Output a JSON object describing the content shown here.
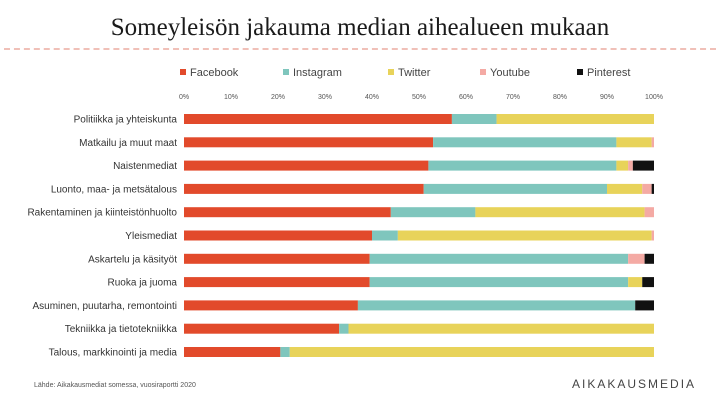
{
  "chart_data": {
    "type": "bar",
    "orientation": "horizontal",
    "stacked": true,
    "title": "Someyleisön jakauma median aihealueen mukaan",
    "categories": [
      "Politiikka ja yhteiskunta",
      "Matkailu ja muut maat",
      "Naistenmediat",
      "Luonto, maa- ja metsätalous",
      "Rakentaminen ja kiinteistönhuolto",
      "Yleismediat",
      "Askartelu ja käsityöt",
      "Ruoka ja juoma",
      "Asuminen, puutarha, remontointi",
      "Tekniikka ja tietotekniikka",
      "Talous, markkinointi ja media"
    ],
    "series": [
      {
        "name": "Facebook",
        "color": "#e24a2b",
        "values": [
          57,
          53,
          52,
          51,
          44,
          40,
          39.5,
          39.5,
          37,
          33,
          20.5
        ]
      },
      {
        "name": "Instagram",
        "color": "#7fc6bd",
        "values": [
          9.5,
          39,
          40,
          39,
          18,
          5.5,
          55,
          55,
          59,
          2,
          2
        ]
      },
      {
        "name": "Twitter",
        "color": "#e8d35a",
        "values": [
          33.5,
          7.5,
          2.5,
          7.5,
          36,
          54,
          0,
          3,
          0,
          65,
          77.5
        ]
      },
      {
        "name": "Youtube",
        "color": "#f4aaa4",
        "values": [
          0,
          0.5,
          1,
          2,
          2,
          0.5,
          3.5,
          0,
          0,
          0,
          0
        ]
      },
      {
        "name": "Pinterest",
        "color": "#111111",
        "values": [
          0,
          0,
          4.5,
          0.5,
          0,
          0,
          2,
          2.5,
          4,
          0,
          0
        ]
      }
    ],
    "xlim": [
      0,
      100
    ],
    "xticks": [
      "0%",
      "10%",
      "20%",
      "30%",
      "40%",
      "50%",
      "60%",
      "70%",
      "80%",
      "90%",
      "100%"
    ],
    "legend_position": "top",
    "grid": false,
    "source": "Lähde: Aikakausmediat somessa, vuosiraportti 2020",
    "brand": "AIKAKAUSMEDIA"
  }
}
